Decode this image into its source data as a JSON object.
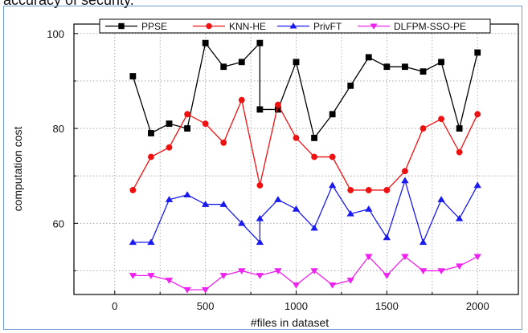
{
  "caption": "accuracy of security.",
  "chart_data": {
    "type": "line",
    "title": "",
    "xlabel": "#files in dataset",
    "ylabel": "computation cost",
    "xlim": [
      -225,
      2225
    ],
    "ylim": [
      45,
      102
    ],
    "xticks": [
      0,
      500,
      1000,
      1500,
      2000
    ],
    "yticks": [
      60,
      80,
      100
    ],
    "grid": "dotted",
    "legend_position": "top",
    "x": [
      100,
      200,
      300,
      400,
      500,
      600,
      700,
      800,
      900,
      1000,
      1100,
      1200,
      1300,
      1400,
      1500,
      1600,
      1700,
      1800,
      1900,
      2000
    ],
    "series": [
      {
        "name": "PPSE",
        "color": "#000000",
        "marker": "square",
        "x": [
          100,
          200,
          300,
          400,
          500,
          600,
          700,
          800,
          800,
          900,
          1000,
          1100,
          1200,
          1300,
          1400,
          1500,
          1600,
          1700,
          1800,
          1900,
          2000
        ],
        "values": [
          91,
          79,
          81,
          80,
          98,
          93,
          94,
          98,
          84,
          84,
          94,
          78,
          83,
          89,
          95,
          93,
          93,
          92,
          94,
          80,
          96
        ]
      },
      {
        "name": "KNN-HE",
        "color": "#ee1111",
        "marker": "circle",
        "values": [
          67,
          74,
          76,
          83,
          81,
          77,
          86,
          68,
          85,
          78,
          74,
          74,
          67,
          67,
          67,
          71,
          80,
          82,
          75,
          83
        ]
      },
      {
        "name": "PrivFT",
        "color": "#1a1aee",
        "marker": "triangle-up",
        "x": [
          100,
          200,
          300,
          400,
          500,
          600,
          700,
          800,
          800,
          900,
          1000,
          1100,
          1200,
          1300,
          1400,
          1500,
          1600,
          1700,
          1800,
          1900,
          2000
        ],
        "values": [
          56,
          56,
          65,
          66,
          64,
          64,
          60,
          56,
          61,
          65,
          63,
          59,
          68,
          62,
          63,
          57,
          69,
          56,
          65,
          61,
          68
        ]
      },
      {
        "name": "DLFPM-SSO-PE",
        "color": "#ee22ee",
        "marker": "triangle-down",
        "values": [
          49,
          49,
          48,
          46,
          46,
          49,
          50,
          49,
          50,
          47,
          50,
          47,
          48,
          53,
          49,
          53,
          50,
          50,
          51,
          53
        ]
      }
    ]
  }
}
